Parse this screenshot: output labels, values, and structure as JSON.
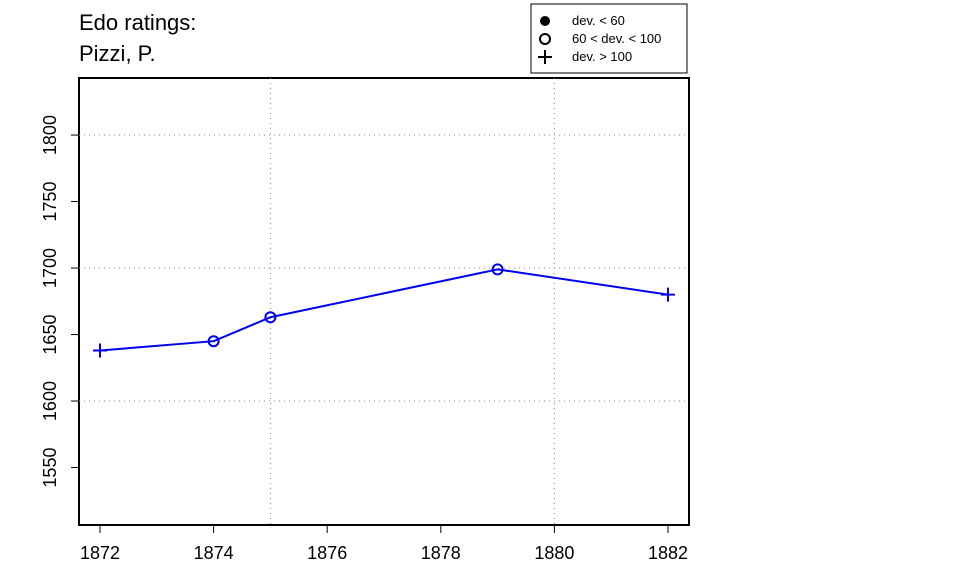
{
  "chart_data": {
    "type": "line",
    "title": [
      "Edo ratings:",
      "Pizzi, P."
    ],
    "x": [
      1872,
      1874,
      1875,
      1879,
      1882
    ],
    "series": [
      {
        "color": "#0000ee",
        "values": [
          1638,
          1645,
          1663,
          1699,
          1680
        ],
        "markers": [
          "plus",
          "circle",
          "circle",
          "circle",
          "plus"
        ]
      }
    ],
    "legend": [
      {
        "marker": "dot",
        "label": "dev. < 60"
      },
      {
        "marker": "circle",
        "label": "60 < dev. < 100"
      },
      {
        "marker": "plus",
        "label": "dev. > 100"
      }
    ],
    "xlim": [
      1871.63,
      1882.37
    ],
    "ylim": [
      1506.8,
      1842.9
    ],
    "xticks": [
      1872,
      1874,
      1876,
      1878,
      1880,
      1882
    ],
    "yticks": [
      1550,
      1600,
      1650,
      1700,
      1750,
      1800
    ],
    "xgrid": [
      1875,
      1880
    ],
    "ygrid": [
      1600,
      1700,
      1800
    ]
  }
}
